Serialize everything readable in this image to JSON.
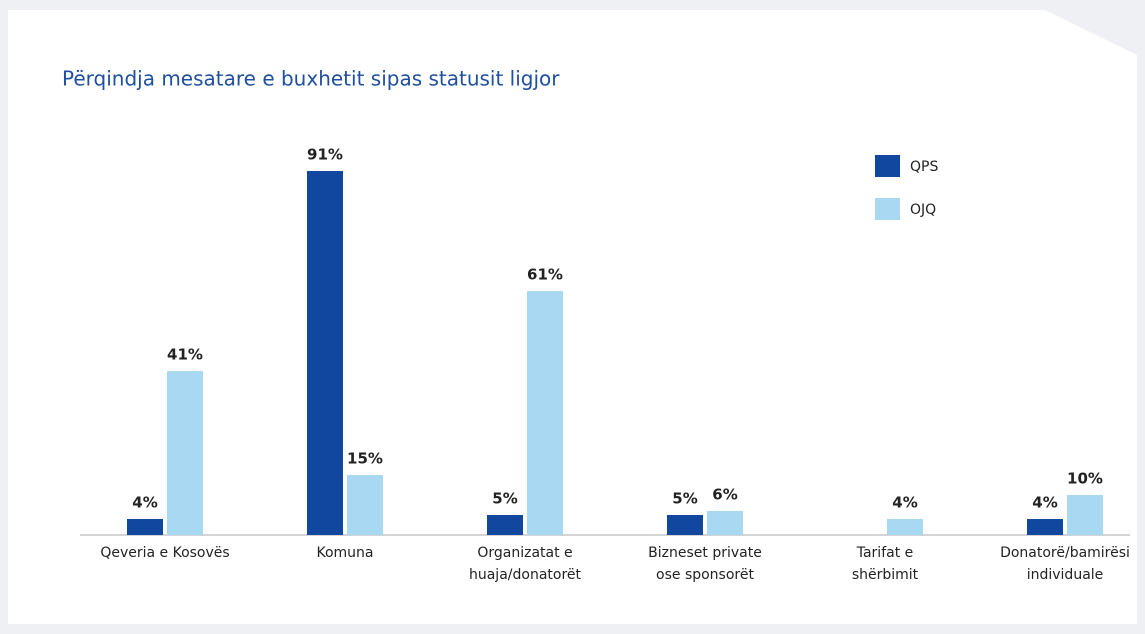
{
  "chart_data": {
    "type": "bar",
    "title": "Përqindja mesatare e buxhetit sipas statusit ligjor",
    "categories": [
      [
        "Qeveria e Kosovës"
      ],
      [
        "Komuna"
      ],
      [
        "Organizatat e",
        "huaja/donatorët"
      ],
      [
        "Bizneset private",
        "ose sponsorët"
      ],
      [
        "Tarifat e",
        "shërbimit"
      ],
      [
        "Donatorë/bamirësi",
        "individuale"
      ]
    ],
    "series": [
      {
        "name": "QPS",
        "color": "#11479e",
        "values": [
          4,
          91,
          5,
          5,
          null,
          4
        ],
        "value_labels": [
          "4%",
          "91%",
          "5%",
          "5%",
          null,
          "4%"
        ]
      },
      {
        "name": "OJQ",
        "color": "#a8d8f2",
        "values": [
          41,
          15,
          61,
          6,
          4,
          10
        ],
        "value_labels": [
          "41%",
          "15%",
          "61%",
          "6%",
          "4%",
          "10%"
        ]
      }
    ],
    "ylim": [
      0,
      100
    ],
    "legend": "upper right"
  }
}
